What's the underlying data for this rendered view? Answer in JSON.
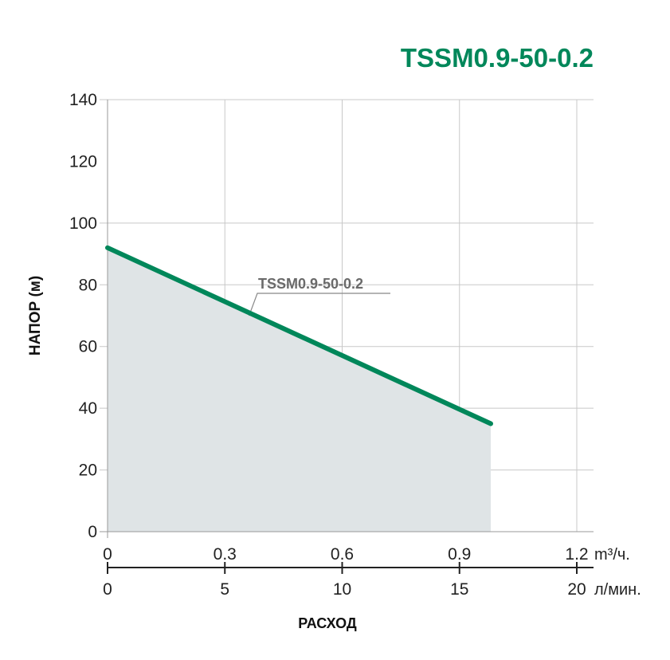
{
  "chart_data": {
    "type": "area",
    "title": "TSSM0.9-50-0.2",
    "ylabel": "НАПОР (м)",
    "xlabel": "РАСХОД",
    "ylim": [
      0,
      140
    ],
    "yticks": [
      0,
      20,
      40,
      60,
      80,
      100,
      120,
      140
    ],
    "x_primary": {
      "unit": "m³/ч.",
      "lim": [
        0,
        1.2
      ],
      "ticks": [
        "0",
        "0.3",
        "0.6",
        "0.9",
        "1.2"
      ]
    },
    "x_secondary": {
      "unit": "л/мин.",
      "lim": [
        0,
        20
      ],
      "ticks": [
        "0",
        "5",
        "10",
        "15",
        "20"
      ]
    },
    "grid": true,
    "series": [
      {
        "name": "TSSM0.9-50-0.2",
        "color": "#00875a",
        "x": [
          0,
          0.98
        ],
        "y": [
          92,
          35
        ]
      }
    ],
    "fill_color": "#dfe4e6",
    "title_color": "#00875a"
  }
}
